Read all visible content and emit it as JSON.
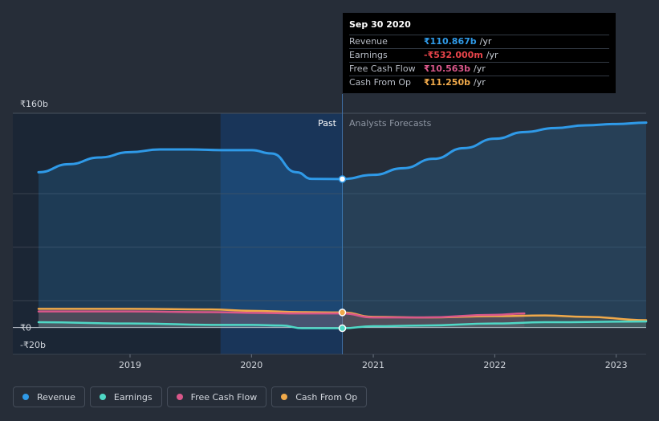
{
  "tooltip": {
    "date": "Sep 30 2020",
    "rows": [
      {
        "label": "Revenue",
        "value": "₹110.867b",
        "unit": "/yr",
        "color": "#2f9ae8"
      },
      {
        "label": "Earnings",
        "value": "-₹532.000m",
        "unit": "/yr",
        "color": "#e8444a"
      },
      {
        "label": "Free Cash Flow",
        "value": "₹10.563b",
        "unit": "/yr",
        "color": "#d9578a"
      },
      {
        "label": "Cash From Op",
        "value": "₹11.250b",
        "unit": "/yr",
        "color": "#f0a94a"
      }
    ]
  },
  "labels": {
    "past": "Past",
    "forecast": "Analysts Forecasts"
  },
  "legend": [
    {
      "label": "Revenue",
      "color": "#2f9ae8"
    },
    {
      "label": "Earnings",
      "color": "#4fd8c6"
    },
    {
      "label": "Free Cash Flow",
      "color": "#d9578a"
    },
    {
      "label": "Cash From Op",
      "color": "#f0a94a"
    }
  ],
  "chart_data": {
    "type": "line",
    "currency": "₹",
    "y_ticks": [
      {
        "value": 160,
        "label": "₹160b"
      },
      {
        "value": 0,
        "label": "₹0"
      },
      {
        "value": -20,
        "label": "-₹20b"
      }
    ],
    "ylim": [
      -20,
      160
    ],
    "xlim": [
      "2018-04-01",
      "2023-04-01"
    ],
    "x_ticks": [
      {
        "date": "2019-01-01",
        "label": "2019"
      },
      {
        "date": "2020-01-01",
        "label": "2020"
      },
      {
        "date": "2021-01-01",
        "label": "2021"
      },
      {
        "date": "2022-01-01",
        "label": "2022"
      },
      {
        "date": "2023-01-01",
        "label": "2023"
      }
    ],
    "divider_date": "2020-09-30",
    "highlight_start": "2019-09-30",
    "series": [
      {
        "name": "Revenue",
        "color": "#2f9ae8",
        "area": true,
        "marker": [
          "2020-09-30",
          110.9
        ],
        "points": [
          [
            "2018-04-01",
            116
          ],
          [
            "2018-07-01",
            122
          ],
          [
            "2018-10-01",
            127
          ],
          [
            "2019-01-01",
            131
          ],
          [
            "2019-04-01",
            133
          ],
          [
            "2019-07-01",
            133
          ],
          [
            "2019-10-01",
            132.5
          ],
          [
            "2020-01-01",
            132.5
          ],
          [
            "2020-03-01",
            130
          ],
          [
            "2020-05-15",
            116
          ],
          [
            "2020-06-30",
            111
          ],
          [
            "2020-09-30",
            110.9
          ],
          [
            "2021-01-01",
            114
          ],
          [
            "2021-04-01",
            119
          ],
          [
            "2021-07-01",
            126
          ],
          [
            "2021-10-01",
            134
          ],
          [
            "2022-01-01",
            141
          ],
          [
            "2022-04-01",
            146
          ],
          [
            "2022-07-01",
            149
          ],
          [
            "2022-10-01",
            151
          ],
          [
            "2023-01-01",
            152
          ],
          [
            "2023-04-01",
            153
          ]
        ]
      },
      {
        "name": "Cash From Op",
        "color": "#f0a94a",
        "area": false,
        "marker": [
          "2020-09-30",
          11.25
        ],
        "points": [
          [
            "2018-04-01",
            14
          ],
          [
            "2019-01-01",
            14
          ],
          [
            "2019-09-01",
            13.5
          ],
          [
            "2020-01-01",
            12.5
          ],
          [
            "2020-06-01",
            11.5
          ],
          [
            "2020-09-30",
            11.25
          ],
          [
            "2021-01-01",
            8
          ],
          [
            "2021-06-01",
            7.5
          ],
          [
            "2022-01-01",
            8.5
          ],
          [
            "2022-06-01",
            9
          ],
          [
            "2022-10-01",
            8
          ],
          [
            "2023-04-01",
            5.5
          ]
        ]
      },
      {
        "name": "Free Cash Flow",
        "color": "#d9578a",
        "area": false,
        "marker": null,
        "points": [
          [
            "2018-04-01",
            12
          ],
          [
            "2019-01-01",
            12
          ],
          [
            "2019-09-01",
            11.5
          ],
          [
            "2020-01-01",
            11
          ],
          [
            "2020-06-01",
            10.5
          ],
          [
            "2020-09-30",
            10.56
          ],
          [
            "2021-01-01",
            7.5
          ],
          [
            "2021-06-01",
            7.5
          ],
          [
            "2022-01-01",
            9.5
          ],
          [
            "2022-03-31",
            10.5
          ]
        ]
      },
      {
        "name": "Earnings",
        "color": "#4fd8c6",
        "area": false,
        "marker": [
          "2020-09-30",
          -0.53
        ],
        "points": [
          [
            "2018-04-01",
            4
          ],
          [
            "2019-01-01",
            3
          ],
          [
            "2019-10-01",
            2
          ],
          [
            "2020-01-01",
            2
          ],
          [
            "2020-04-01",
            1.5
          ],
          [
            "2020-06-01",
            -0.5
          ],
          [
            "2020-09-30",
            -0.53
          ],
          [
            "2021-01-01",
            1
          ],
          [
            "2021-06-01",
            1.5
          ],
          [
            "2022-01-01",
            3
          ],
          [
            "2022-06-01",
            4
          ],
          [
            "2023-04-01",
            4.5
          ]
        ]
      }
    ]
  }
}
